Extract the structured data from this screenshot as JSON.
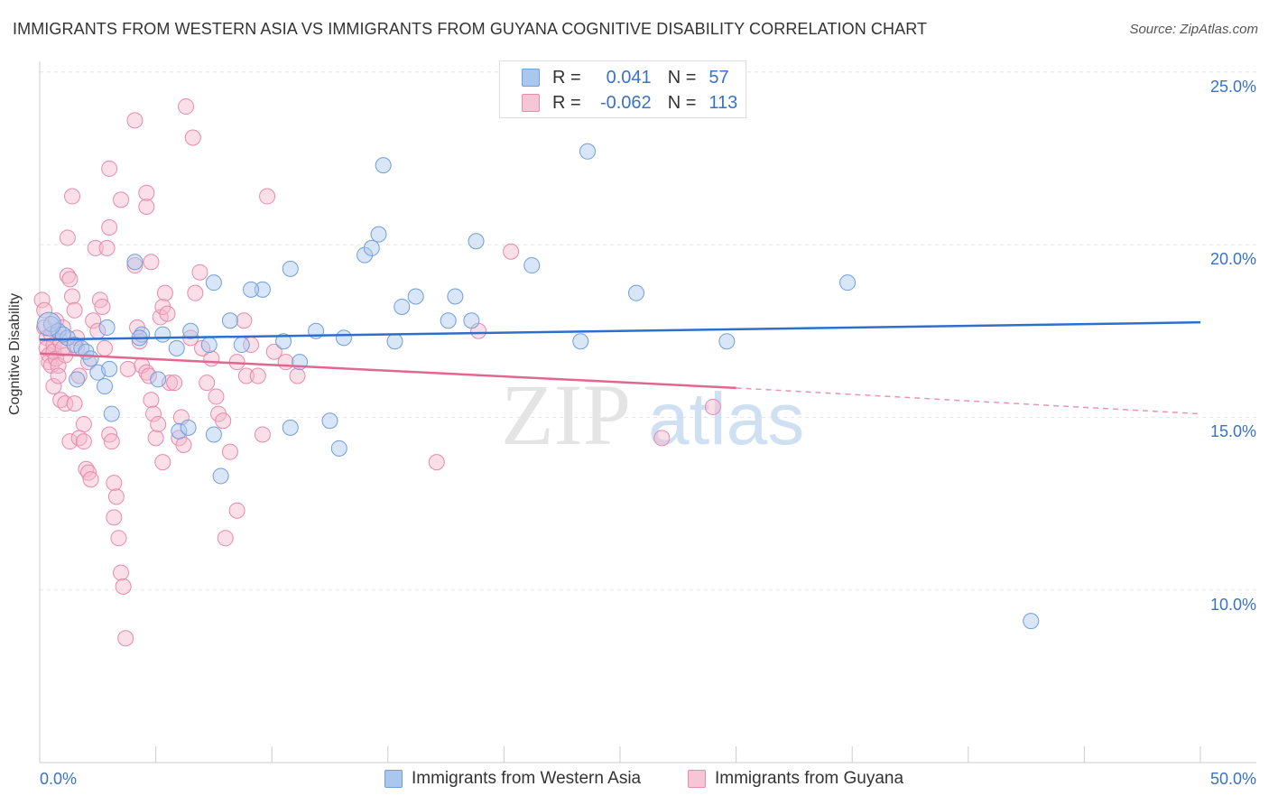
{
  "title": "IMMIGRANTS FROM WESTERN ASIA VS IMMIGRANTS FROM GUYANA COGNITIVE DISABILITY CORRELATION CHART",
  "source": "Source: ZipAtlas.com",
  "watermark": {
    "zip": "ZIP",
    "atlas": "atlas"
  },
  "legend": {
    "rows": [
      {
        "r_label": "R =",
        "r_value": "0.041",
        "n_label": "N =",
        "n_value": "57"
      },
      {
        "r_label": "R =",
        "r_value": "-0.062",
        "n_label": "N =",
        "n_value": "113"
      }
    ]
  },
  "colors": {
    "blue_fill": "#aac8ee",
    "blue_stroke": "#6f9edc",
    "blue_line": "#2f6fcc",
    "pink_fill": "#f5b8cc",
    "pink_stroke": "#e88aab",
    "pink_line": "#e06890",
    "accent_text": "#3a72c4",
    "grid": "#e5e5e5"
  },
  "chart_data": {
    "type": "scatter",
    "xlabel": "",
    "ylabel": "Cognitive Disability",
    "xlim": [
      0,
      50
    ],
    "ylim": [
      5,
      26.5
    ],
    "x_tick_labels": [
      {
        "value": 0,
        "label": "0.0%"
      },
      {
        "value": 50,
        "label": "50.0%"
      }
    ],
    "y_tick_labels": [
      {
        "value": 25,
        "label": "25.0%"
      },
      {
        "value": 20,
        "label": "20.0%"
      },
      {
        "value": 15,
        "label": "15.0%"
      },
      {
        "value": 10,
        "label": "10.0%"
      }
    ],
    "grid": true,
    "legend_position": "top-center",
    "series": [
      {
        "name": "Immigrants from Western Asia",
        "color": "blue",
        "R": 0.041,
        "N": 57,
        "trend": {
          "x": [
            0,
            50
          ],
          "y": [
            17.25,
            17.75
          ],
          "dashed_from": null
        },
        "points": [
          [
            0.5,
            17.7
          ],
          [
            0.8,
            17.5
          ],
          [
            1.2,
            17.3
          ],
          [
            1.5,
            17.1
          ],
          [
            1.8,
            17.0
          ],
          [
            2.0,
            16.9
          ],
          [
            2.2,
            16.7
          ],
          [
            2.5,
            16.3
          ],
          [
            1.6,
            16.1
          ],
          [
            2.9,
            17.6
          ],
          [
            3.0,
            16.4
          ],
          [
            2.8,
            15.9
          ],
          [
            4.1,
            19.5
          ],
          [
            4.4,
            17.4
          ],
          [
            5.3,
            17.4
          ],
          [
            4.3,
            17.3
          ],
          [
            5.9,
            17.0
          ],
          [
            6.5,
            17.5
          ],
          [
            7.5,
            18.9
          ],
          [
            8.2,
            17.8
          ],
          [
            8.7,
            17.1
          ],
          [
            9.6,
            18.7
          ],
          [
            10.8,
            19.3
          ],
          [
            9.1,
            18.7
          ],
          [
            7.3,
            17.1
          ],
          [
            3.1,
            15.1
          ],
          [
            5.1,
            16.1
          ],
          [
            6.0,
            14.6
          ],
          [
            6.4,
            14.7
          ],
          [
            7.5,
            14.5
          ],
          [
            7.8,
            13.3
          ],
          [
            10.5,
            17.2
          ],
          [
            11.2,
            16.6
          ],
          [
            11.9,
            17.5
          ],
          [
            10.8,
            14.7
          ],
          [
            12.5,
            14.9
          ],
          [
            12.9,
            14.1
          ],
          [
            13.1,
            17.3
          ],
          [
            14.0,
            19.7
          ],
          [
            14.3,
            19.9
          ],
          [
            14.6,
            20.3
          ],
          [
            14.8,
            22.3
          ],
          [
            15.3,
            17.2
          ],
          [
            15.6,
            18.2
          ],
          [
            16.2,
            18.5
          ],
          [
            17.6,
            17.8
          ],
          [
            17.9,
            18.5
          ],
          [
            18.6,
            17.8
          ],
          [
            18.8,
            20.1
          ],
          [
            21.2,
            19.4
          ],
          [
            23.3,
            17.2
          ],
          [
            23.6,
            22.7
          ],
          [
            25.7,
            18.6
          ],
          [
            29.6,
            17.2
          ],
          [
            34.8,
            18.9
          ],
          [
            42.7,
            9.1
          ],
          [
            1.0,
            17.4
          ]
        ]
      },
      {
        "name": "Immigrants from Guyana",
        "color": "pink",
        "R": -0.062,
        "N": 113,
        "trend": {
          "x": [
            0,
            30,
            50
          ],
          "y": [
            16.85,
            15.85,
            15.1
          ],
          "dashed_from": 30
        },
        "points": [
          [
            0.1,
            18.4
          ],
          [
            0.2,
            18.1
          ],
          [
            0.2,
            17.6
          ],
          [
            0.3,
            17.3
          ],
          [
            0.3,
            17.0
          ],
          [
            0.4,
            16.8
          ],
          [
            0.4,
            16.6
          ],
          [
            0.5,
            16.5
          ],
          [
            0.5,
            17.4
          ],
          [
            0.6,
            17.1
          ],
          [
            0.6,
            16.9
          ],
          [
            0.7,
            16.7
          ],
          [
            0.7,
            17.8
          ],
          [
            0.8,
            16.5
          ],
          [
            0.9,
            17.2
          ],
          [
            1.0,
            17.6
          ],
          [
            1.1,
            16.8
          ],
          [
            1.2,
            19.1
          ],
          [
            1.2,
            20.2
          ],
          [
            1.3,
            19.0
          ],
          [
            1.4,
            18.5
          ],
          [
            1.5,
            18.1
          ],
          [
            1.6,
            17.3
          ],
          [
            1.6,
            17.0
          ],
          [
            1.7,
            16.2
          ],
          [
            0.6,
            15.9
          ],
          [
            0.9,
            15.5
          ],
          [
            1.1,
            15.4
          ],
          [
            1.3,
            14.3
          ],
          [
            1.5,
            15.4
          ],
          [
            1.9,
            14.8
          ],
          [
            1.7,
            14.4
          ],
          [
            1.9,
            14.3
          ],
          [
            2.0,
            13.5
          ],
          [
            2.1,
            13.4
          ],
          [
            2.2,
            13.2
          ],
          [
            2.3,
            17.8
          ],
          [
            2.4,
            19.9
          ],
          [
            2.6,
            18.4
          ],
          [
            2.7,
            18.2
          ],
          [
            2.8,
            17.0
          ],
          [
            2.9,
            19.9
          ],
          [
            3.0,
            20.5
          ],
          [
            3.0,
            14.5
          ],
          [
            3.1,
            14.3
          ],
          [
            3.2,
            13.1
          ],
          [
            3.2,
            12.1
          ],
          [
            3.3,
            12.7
          ],
          [
            3.4,
            11.5
          ],
          [
            3.5,
            10.5
          ],
          [
            3.6,
            10.1
          ],
          [
            3.7,
            8.6
          ],
          [
            3.0,
            22.2
          ],
          [
            3.5,
            21.3
          ],
          [
            4.1,
            23.6
          ],
          [
            4.6,
            21.1
          ],
          [
            4.6,
            21.5
          ],
          [
            4.8,
            19.5
          ],
          [
            4.1,
            19.4
          ],
          [
            4.3,
            17.2
          ],
          [
            4.4,
            16.5
          ],
          [
            4.6,
            16.3
          ],
          [
            4.7,
            16.2
          ],
          [
            4.8,
            15.5
          ],
          [
            4.9,
            15.1
          ],
          [
            5.0,
            14.4
          ],
          [
            5.2,
            17.9
          ],
          [
            5.3,
            18.2
          ],
          [
            5.4,
            18.6
          ],
          [
            5.5,
            18.0
          ],
          [
            5.6,
            16.0
          ],
          [
            5.8,
            16.0
          ],
          [
            6.0,
            14.4
          ],
          [
            6.1,
            15.0
          ],
          [
            6.2,
            14.2
          ],
          [
            5.1,
            14.8
          ],
          [
            5.3,
            13.7
          ],
          [
            6.6,
            23.1
          ],
          [
            6.7,
            18.6
          ],
          [
            6.3,
            24.0
          ],
          [
            6.5,
            17.3
          ],
          [
            6.9,
            19.2
          ],
          [
            7.2,
            16.0
          ],
          [
            7.4,
            16.7
          ],
          [
            7.6,
            15.6
          ],
          [
            7.7,
            15.1
          ],
          [
            7.9,
            14.9
          ],
          [
            8.2,
            14.0
          ],
          [
            8.5,
            12.3
          ],
          [
            8.0,
            11.5
          ],
          [
            8.8,
            17.8
          ],
          [
            8.5,
            16.6
          ],
          [
            8.9,
            16.2
          ],
          [
            9.1,
            17.1
          ],
          [
            9.4,
            16.2
          ],
          [
            9.6,
            14.5
          ],
          [
            9.8,
            21.4
          ],
          [
            10.1,
            16.9
          ],
          [
            10.6,
            16.6
          ],
          [
            11.1,
            16.2
          ],
          [
            17.1,
            13.7
          ],
          [
            18.9,
            17.5
          ],
          [
            20.3,
            19.8
          ],
          [
            26.8,
            14.4
          ],
          [
            29.0,
            15.3
          ],
          [
            1.4,
            21.4
          ],
          [
            2.1,
            16.6
          ],
          [
            0.8,
            16.2
          ],
          [
            1.0,
            17.0
          ],
          [
            2.5,
            17.5
          ],
          [
            3.8,
            16.4
          ],
          [
            4.2,
            17.6
          ],
          [
            7.0,
            17.0
          ]
        ]
      }
    ]
  },
  "bottom_legend": [
    {
      "label": "Immigrants from Western Asia"
    },
    {
      "label": "Immigrants from Guyana"
    }
  ]
}
